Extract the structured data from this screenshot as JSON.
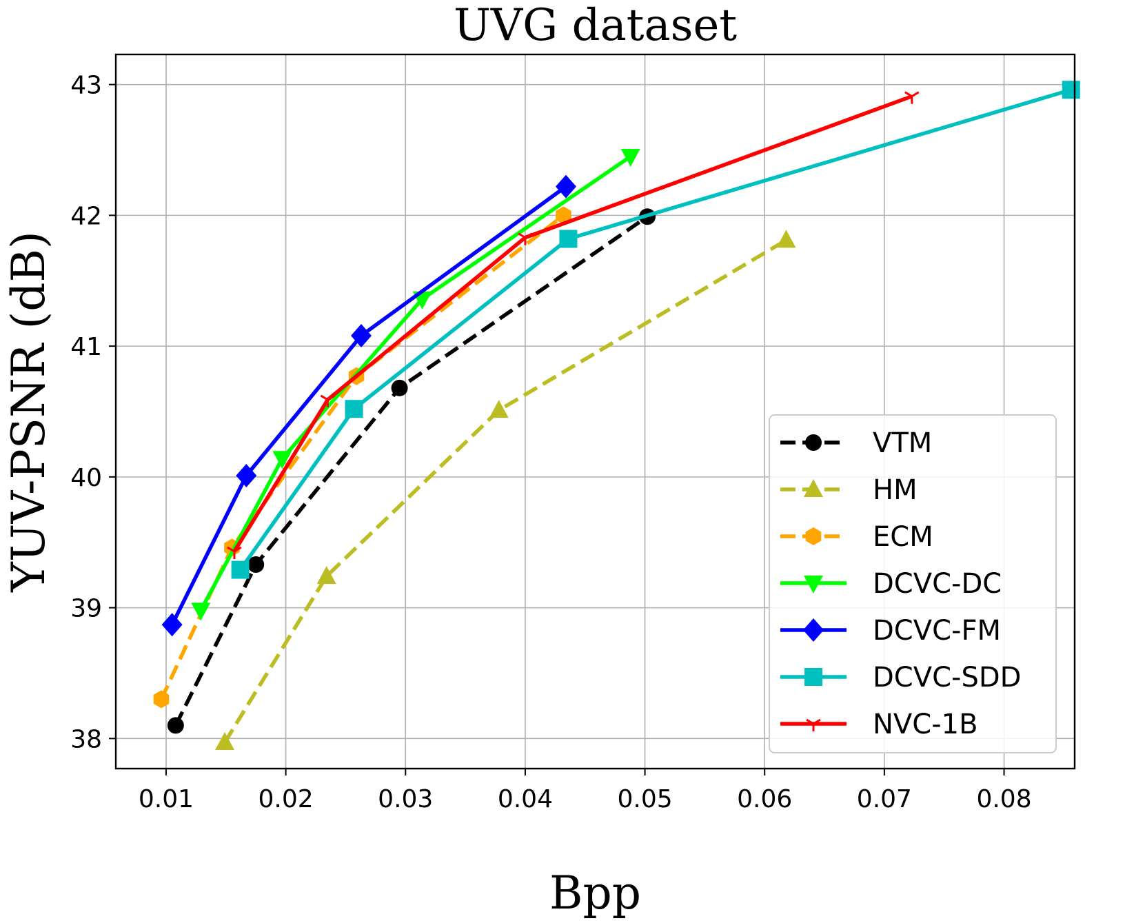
{
  "chart_data": {
    "type": "line",
    "title": "UVG dataset",
    "xlabel": "Bpp",
    "ylabel": "YUV-PSNR (dB)",
    "xlim": [
      0.0058,
      0.0859
    ],
    "ylim": [
      37.77,
      43.23
    ],
    "xticks": [
      0.01,
      0.02,
      0.03,
      0.04,
      0.05,
      0.06,
      0.07,
      0.08
    ],
    "xtick_labels": [
      "0.01",
      "0.02",
      "0.03",
      "0.04",
      "0.05",
      "0.06",
      "0.07",
      "0.08"
    ],
    "yticks": [
      38,
      39,
      40,
      41,
      42,
      43
    ],
    "ytick_labels": [
      "38",
      "39",
      "40",
      "41",
      "42",
      "43"
    ],
    "grid": true,
    "legend_position": "lower-right",
    "series": [
      {
        "name": "VTM",
        "color": "#000000",
        "line_style": "dashed",
        "marker": "circle",
        "x": [
          0.0108,
          0.0175,
          0.0295,
          0.0502
        ],
        "y": [
          38.1,
          39.33,
          40.68,
          41.99
        ]
      },
      {
        "name": "HM",
        "color": "#bcbd22",
        "line_style": "dashed",
        "marker": "triangle-up",
        "x": [
          0.0149,
          0.0234,
          0.0378,
          0.0618
        ],
        "y": [
          37.97,
          39.24,
          40.51,
          41.81
        ]
      },
      {
        "name": "ECM",
        "color": "#ffa500",
        "line_style": "dashed",
        "marker": "hexagon",
        "x": [
          0.0096,
          0.0155,
          0.0259,
          0.0432
        ],
        "y": [
          38.3,
          39.46,
          40.77,
          42.0
        ]
      },
      {
        "name": "DCVC-DC",
        "color": "#00ff00",
        "line_style": "solid",
        "marker": "triangle-down",
        "x": [
          0.0129,
          0.0197,
          0.0314,
          0.0488
        ],
        "y": [
          38.98,
          40.14,
          41.36,
          42.45
        ]
      },
      {
        "name": "DCVC-FM",
        "color": "#0000ff",
        "line_style": "solid",
        "marker": "diamond",
        "x": [
          0.0105,
          0.0167,
          0.0263,
          0.0434
        ],
        "y": [
          38.87,
          40.01,
          41.08,
          42.22
        ]
      },
      {
        "name": "DCVC-SDD",
        "color": "#00bfbf",
        "line_style": "solid",
        "marker": "square",
        "x": [
          0.0162,
          0.0257,
          0.0436,
          0.0856
        ],
        "y": [
          39.29,
          40.52,
          41.82,
          42.96
        ]
      },
      {
        "name": "NVC-1B",
        "color": "#ff0000",
        "line_style": "solid",
        "marker": "tri-down",
        "x": [
          0.0157,
          0.0235,
          0.04,
          0.0723
        ],
        "y": [
          39.43,
          40.59,
          41.83,
          42.91
        ]
      }
    ]
  }
}
